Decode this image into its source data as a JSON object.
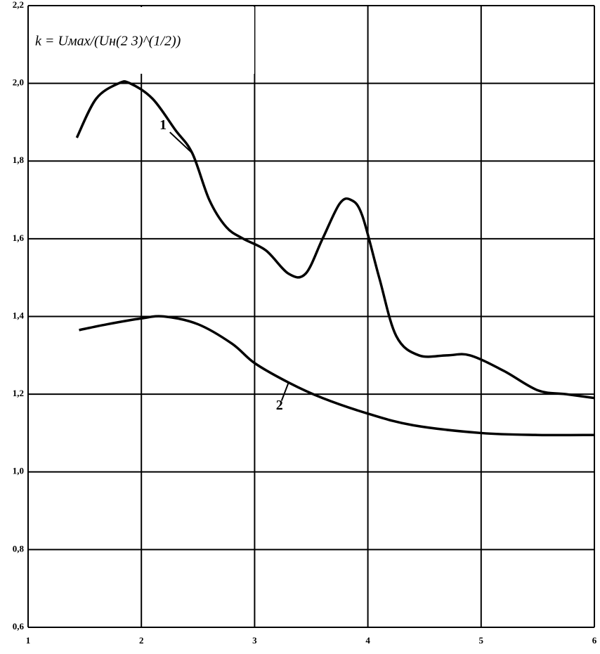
{
  "chart_data": {
    "type": "line",
    "annotation": "k = Uмах/(Uн(2 3)^(1/2))",
    "xlim": [
      1,
      6
    ],
    "xticks": [
      1,
      2,
      3,
      4,
      5,
      6
    ],
    "ylim": [
      0.6,
      2.2
    ],
    "yticks": [
      {
        "value": 0.6,
        "label": "0,6"
      },
      {
        "value": 0.8,
        "label": "0,8"
      },
      {
        "value": 1.0,
        "label": "1,0"
      },
      {
        "value": 1.2,
        "label": "1,2"
      },
      {
        "value": 1.4,
        "label": "1,4"
      },
      {
        "value": 1.6,
        "label": "1,6"
      },
      {
        "value": 1.8,
        "label": "1,8"
      },
      {
        "value": 2.0,
        "label": "2,0"
      },
      {
        "value": 2.2,
        "label": "2,2"
      }
    ],
    "grid": true,
    "series": [
      {
        "name": "1",
        "color": "#000000",
        "x": [
          1.43,
          1.6,
          1.8,
          1.9,
          2.1,
          2.3,
          2.45,
          2.6,
          2.75,
          2.9,
          3.1,
          3.3,
          3.45,
          3.6,
          3.75,
          3.85,
          3.95,
          4.1,
          4.25,
          4.45,
          4.7,
          4.9,
          5.2,
          5.5,
          5.75,
          6.0
        ],
        "values": [
          1.86,
          1.96,
          2.0,
          2.0,
          1.96,
          1.88,
          1.82,
          1.7,
          1.63,
          1.6,
          1.57,
          1.51,
          1.51,
          1.6,
          1.69,
          1.7,
          1.66,
          1.5,
          1.35,
          1.3,
          1.3,
          1.3,
          1.26,
          1.21,
          1.2,
          1.19
        ]
      },
      {
        "name": "2",
        "color": "#000000",
        "x": [
          1.45,
          1.7,
          2.0,
          2.2,
          2.5,
          2.8,
          3.0,
          3.3,
          3.6,
          4.0,
          4.4,
          5.0,
          5.5,
          6.0
        ],
        "values": [
          1.365,
          1.38,
          1.395,
          1.4,
          1.38,
          1.33,
          1.28,
          1.23,
          1.19,
          1.15,
          1.12,
          1.1,
          1.095,
          1.095
        ]
      }
    ]
  }
}
